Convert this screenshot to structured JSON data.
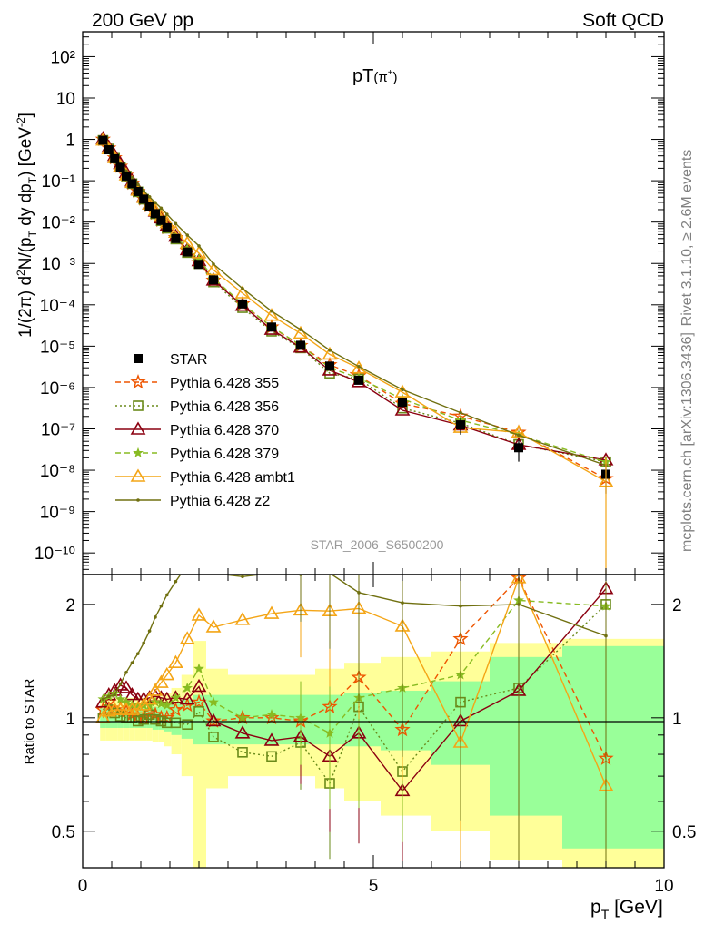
{
  "header": {
    "left": "200 GeV pp",
    "right": "Soft QCD"
  },
  "plot_title": "pT(π⁺)",
  "ylabel_main": "1/(2π) d²N/(p_T dy dp_T) [GeV⁻²]",
  "ylabel_ratio": "Ratio to STAR",
  "xlabel": "p_T [GeV]",
  "analysis_id": "STAR_2006_S6500200",
  "side_text_top": "Rivet 3.1.10, ≥ 2.6M events",
  "side_text_bottom": "mcplots.cern.ch [arXiv:1306.3436]",
  "main_y_ticks": [
    "10⁻¹⁰",
    "10⁻⁹",
    "10⁻⁸",
    "10⁻⁷",
    "10⁻⁶",
    "10⁻⁵",
    "10⁻⁴",
    "10⁻³",
    "10⁻²",
    "10⁻¹",
    "1",
    "10",
    "10²"
  ],
  "x_ticks": [
    "0",
    "5",
    "10"
  ],
  "ratio_y_ticks": [
    "0.5",
    "1",
    "2"
  ],
  "colors": {
    "star": "#000000",
    "p355": "#ee5500",
    "p356": "#6a8a1a",
    "p370": "#8b0010",
    "p379": "#88bb22",
    "ambt1": "#f4a516",
    "z2": "#707010",
    "band_yellow": "#ffff99",
    "band_green": "#99ff99"
  },
  "chart_data": {
    "type": "scatter",
    "x_range": [
      0,
      10
    ],
    "y_range_main": [
      3e-11,
      400
    ],
    "y_scale": "log",
    "ratio_range": [
      0.4,
      2.4
    ],
    "legend_position": "lower-left",
    "x": [
      0.35,
      0.45,
      0.55,
      0.65,
      0.75,
      0.85,
      0.95,
      1.05,
      1.15,
      1.25,
      1.35,
      1.45,
      1.6,
      1.8,
      2.0,
      2.25,
      2.75,
      3.25,
      3.75,
      4.25,
      4.75,
      5.5,
      6.5,
      7.5,
      9.0
    ],
    "series": [
      {
        "name": "STAR",
        "key": "star",
        "marker": "square",
        "values": [
          0.95,
          0.56,
          0.34,
          0.21,
          0.13,
          0.085,
          0.055,
          0.036,
          0.024,
          0.016,
          0.011,
          0.0073,
          0.004,
          0.0019,
          0.00095,
          0.0004,
          0.000105,
          2.9e-05,
          1.05e-05,
          3.3e-06,
          1.5e-06,
          4.4e-07,
          1.25e-07,
          3.5e-08,
          8e-09
        ],
        "ratio_band_inner": [
          0.06,
          0.06,
          0.06,
          0.06,
          0.06,
          0.06,
          0.06,
          0.06,
          0.06,
          0.07,
          0.07,
          0.08,
          0.1,
          0.12,
          0.15,
          0.15,
          0.15,
          0.15,
          0.15,
          0.15,
          0.16,
          0.18,
          0.25,
          0.45,
          0.55
        ],
        "ratio_band_outer": [
          0.13,
          0.13,
          0.13,
          0.13,
          0.13,
          0.13,
          0.13,
          0.13,
          0.13,
          0.14,
          0.14,
          0.16,
          0.2,
          0.3,
          0.6,
          0.35,
          0.3,
          0.3,
          0.3,
          0.35,
          0.4,
          0.45,
          0.5,
          0.58,
          0.62
        ]
      },
      {
        "name": "Pythia 6.428 355",
        "key": "p355",
        "marker": "star",
        "dash": "6,4",
        "ratio": [
          1.05,
          1.1,
          1.05,
          1.06,
          1.04,
          1.02,
          1.0,
          1.0,
          1.03,
          1.02,
          1.0,
          1.0,
          1.05,
          1.08,
          1.1,
          0.98,
          1.0,
          1.0,
          0.98,
          1.07,
          1.28,
          0.93,
          1.62,
          2.35,
          0.78
        ]
      },
      {
        "name": "Pythia 6.428 356",
        "key": "p356",
        "marker": "open-square",
        "dash": "2,3",
        "ratio": [
          1.0,
          1.05,
          1.03,
          1.01,
          1.0,
          1.0,
          0.98,
          0.99,
          1.02,
          0.99,
          0.98,
          0.97,
          0.97,
          0.96,
          1.04,
          0.89,
          0.81,
          0.79,
          0.86,
          0.67,
          1.07,
          0.72,
          1.1,
          1.2,
          2.0
        ]
      },
      {
        "name": "Pythia 6.428 370",
        "key": "p370",
        "marker": "open-triangle",
        "dash": "",
        "ratio": [
          1.1,
          1.15,
          1.18,
          1.22,
          1.2,
          1.15,
          1.12,
          1.12,
          1.13,
          1.14,
          1.13,
          1.12,
          1.13,
          1.12,
          1.21,
          0.98,
          0.91,
          0.87,
          0.89,
          0.79,
          0.91,
          0.64,
          0.98,
          1.18,
          2.2
        ]
      },
      {
        "name": "Pythia 6.428 379",
        "key": "p379",
        "marker": "star-small",
        "dash": "6,4",
        "ratio": [
          1.12,
          1.14,
          1.16,
          1.12,
          1.1,
          1.08,
          1.07,
          1.08,
          1.08,
          1.1,
          1.09,
          1.08,
          1.13,
          1.2,
          1.35,
          1.1,
          1.0,
          1.02,
          1.0,
          0.91,
          1.13,
          1.2,
          1.3,
          2.05,
          1.98
        ]
      },
      {
        "name": "Pythia 6.428 ambt1",
        "key": "ambt1",
        "marker": "open-triangle",
        "dash": "",
        "ratio": [
          1.0,
          1.04,
          1.05,
          1.05,
          1.05,
          1.05,
          1.06,
          1.08,
          1.12,
          1.18,
          1.24,
          1.3,
          1.4,
          1.62,
          1.87,
          1.74,
          1.82,
          1.89,
          1.93,
          1.92,
          1.95,
          1.75,
          0.86,
          2.35,
          0.66
        ]
      },
      {
        "name": "Pythia 6.428 z2",
        "key": "z2",
        "marker": "dot",
        "dash": "",
        "ratio": [
          1.12,
          1.14,
          1.15,
          1.23,
          1.32,
          1.4,
          1.48,
          1.58,
          1.7,
          1.85,
          1.98,
          2.12,
          2.3,
          2.55,
          2.8,
          2.42,
          2.37,
          2.42,
          2.4,
          2.42,
          2.15,
          2.02,
          1.98,
          2.0,
          1.65
        ]
      }
    ]
  }
}
